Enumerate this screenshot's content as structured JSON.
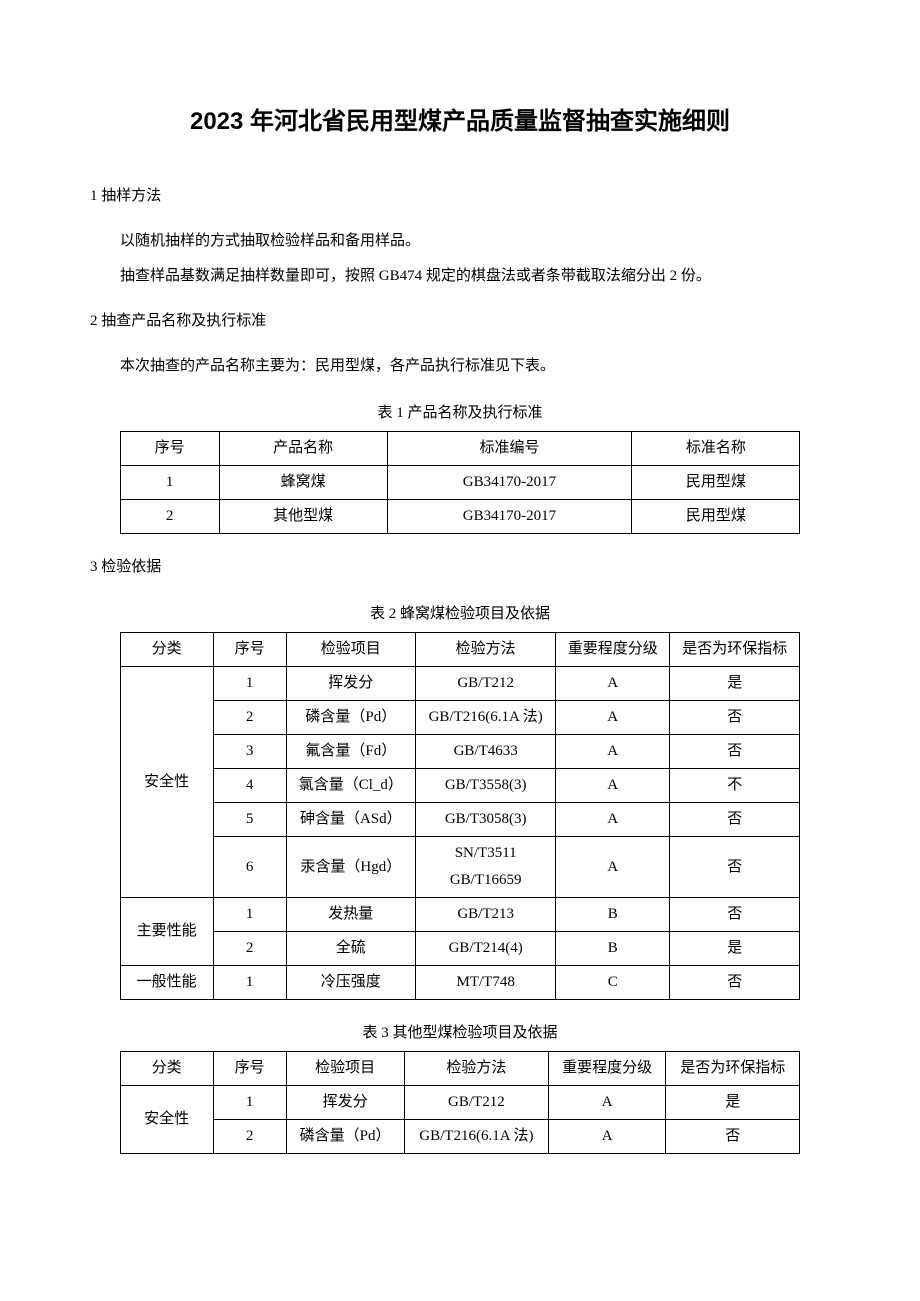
{
  "title": "2023 年河北省民用型煤产品质量监督抽查实施细则",
  "sections": {
    "s1": {
      "heading": "1 抽样方法",
      "p1": "以随机抽样的方式抽取检验样品和备用样品。",
      "p2": "抽查样品基数满足抽样数量即可，按照 GB474 规定的棋盘法或者条带截取法缩分出 2 份。"
    },
    "s2": {
      "heading": "2 抽查产品名称及执行标准",
      "p1": "本次抽查的产品名称主要为：民用型煤，各产品执行标准见下表。"
    },
    "s3": {
      "heading": "3 检验依据"
    }
  },
  "table1": {
    "caption": "表 1 产品名称及执行标准",
    "columns": [
      "序号",
      "产品名称",
      "标准编号",
      "标准名称"
    ],
    "rows": [
      [
        "1",
        "蜂窝煤",
        "GB34170-2017",
        "民用型煤"
      ],
      [
        "2",
        "其他型煤",
        "GB34170-2017",
        "民用型煤"
      ]
    ]
  },
  "table2": {
    "caption": "表 2 蜂窝煤检验项目及依据",
    "columns": [
      "分类",
      "序号",
      "检验项目",
      "检验方法",
      "重要程度分级",
      "是否为环保指标"
    ],
    "groups": [
      {
        "category": "安全性",
        "rows": [
          [
            "1",
            "挥发分",
            "GB/T212",
            "A",
            "是"
          ],
          [
            "2",
            "磷含量（Pd）",
            "GB/T216(6.1A 法)",
            "A",
            "否"
          ],
          [
            "3",
            "氟含量（Fd）",
            "GB/T4633",
            "A",
            "否"
          ],
          [
            "4",
            "氯含量（Cl_d）",
            "GB/T3558(3)",
            "A",
            "不"
          ],
          [
            "5",
            "砷含量（ASd）",
            "GB/T3058(3)",
            "A",
            "否"
          ],
          [
            "6",
            "汞含量（Hgd）",
            "SN/T3511\nGB/T16659",
            "A",
            "否"
          ]
        ]
      },
      {
        "category": "主要性能",
        "rows": [
          [
            "1",
            "发热量",
            "GB/T213",
            "B",
            "否"
          ],
          [
            "2",
            "全硫",
            "GB/T214(4)",
            "B",
            "是"
          ]
        ]
      },
      {
        "category": "一般性能",
        "rows": [
          [
            "1",
            "冷压强度",
            "MT/T748",
            "C",
            "否"
          ]
        ]
      }
    ]
  },
  "table3": {
    "caption": "表 3 其他型煤检验项目及依据",
    "columns": [
      "分类",
      "序号",
      "检验项目",
      "检验方法",
      "重要程度分级",
      "是否为环保指标"
    ],
    "groups": [
      {
        "category": "安全性",
        "rows": [
          [
            "1",
            "挥发分",
            "GB/T212",
            "A",
            "是"
          ],
          [
            "2",
            "磷含量（Pd）",
            "GB/T216(6.1A 法)",
            "A",
            "否"
          ]
        ]
      }
    ]
  },
  "colors": {
    "text": "#000000",
    "background": "#ffffff",
    "border": "#000000"
  },
  "typography": {
    "title_fontsize": 24,
    "body_fontsize": 15,
    "title_font": "SimHei",
    "body_font": "SimSun"
  }
}
